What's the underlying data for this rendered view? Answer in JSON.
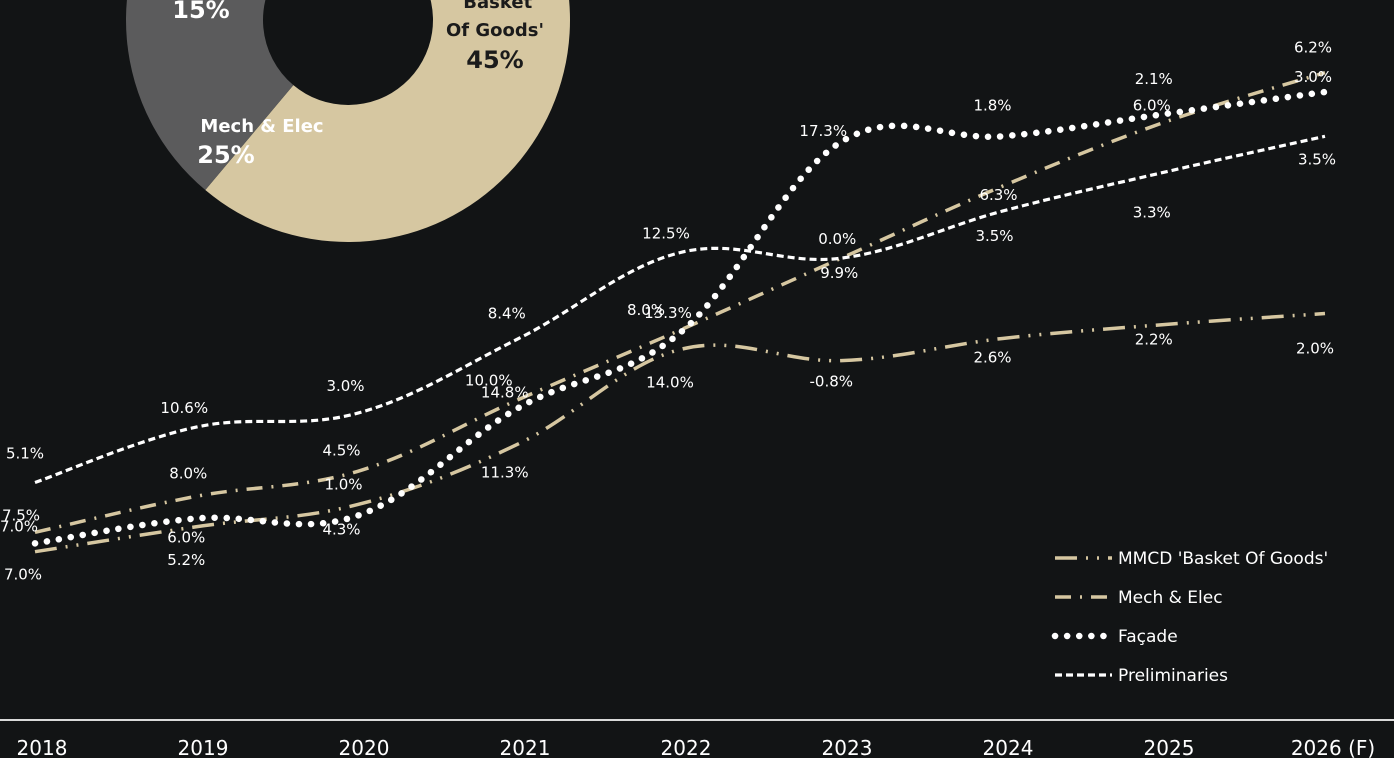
{
  "chart_data": [
    {
      "type": "pie",
      "style": "donut",
      "slices": [
        {
          "name": "MMCD 'Basket Of Goods'",
          "label_lines": [
            "'Basket",
            "Of Goods'"
          ],
          "value": 45,
          "value_label": "45%",
          "color": "#d6c7a1",
          "text_color": "#1b1b1b"
        },
        {
          "name": "Mech & Elec",
          "label_lines": [
            "Mech & Elec"
          ],
          "value": 25,
          "value_label": "25%",
          "color": "#5b5b5c",
          "text_color": "#ffffff"
        },
        {
          "name": "Façade",
          "label_lines": [],
          "value": 15,
          "value_label": "15%",
          "color": "#8c8c8c",
          "text_color": "#ffffff"
        },
        {
          "name": "Preliminaries",
          "label_lines": [],
          "value": 15,
          "value_label": "",
          "color": "#a9a9a9",
          "text_color": "#ffffff"
        }
      ]
    },
    {
      "type": "line",
      "categories": [
        "2018",
        "2019",
        "2020",
        "2021",
        "2022",
        "2023",
        "2024",
        "2025",
        "2026 (F)"
      ],
      "series": [
        {
          "name": "MMCD 'Basket Of Goods'",
          "style": "dash-dot-dot",
          "color": "#d6c7a1",
          "values": [
            0.3,
            1.2,
            2.0,
            4.2,
            7.6,
            7.2,
            8.0,
            8.5,
            8.9
          ],
          "labels": [
            "7.0%",
            "5.2%",
            "4.3%",
            "11.3%",
            "14.0%",
            "-0.8%",
            "2.6%",
            "2.2%",
            "2.0%"
          ]
        },
        {
          "name": "Mech & Elec",
          "style": "dash-dot",
          "color": "#d6c7a1",
          "values": [
            1.0,
            2.3,
            3.2,
            5.8,
            8.3,
            10.9,
            13.5,
            15.8,
            17.6
          ],
          "labels": [
            "7.5%",
            "8.0%",
            "4.5%",
            "10.0%",
            "13.3%",
            "9.9%",
            "6.3%",
            "6.0%",
            "6.2%"
          ]
        },
        {
          "name": "Façade",
          "style": "dotted",
          "color": "#ffffff",
          "values": [
            0.6,
            1.5,
            1.6,
            5.5,
            8.2,
            15.1,
            15.3,
            16.1,
            16.9
          ],
          "labels": [
            "7.0%",
            "6.0%",
            "1.0%",
            "14.8%",
            "8.0%",
            "17.3%",
            "1.8%",
            "2.1%",
            "3.0%"
          ]
        },
        {
          "name": "Preliminaries",
          "style": "dashed",
          "color": "#ffffff",
          "values": [
            2.8,
            4.8,
            5.3,
            8.0,
            11.1,
            10.9,
            12.6,
            14.0,
            15.3
          ],
          "labels": [
            "5.1%",
            "10.6%",
            "3.0%",
            "8.4%",
            "12.5%",
            "0.0%",
            "3.5%",
            "3.3%",
            "3.5%"
          ]
        }
      ],
      "ylim": [
        0,
        19.5
      ],
      "grid": false,
      "legend_position": "bottom-right"
    }
  ]
}
